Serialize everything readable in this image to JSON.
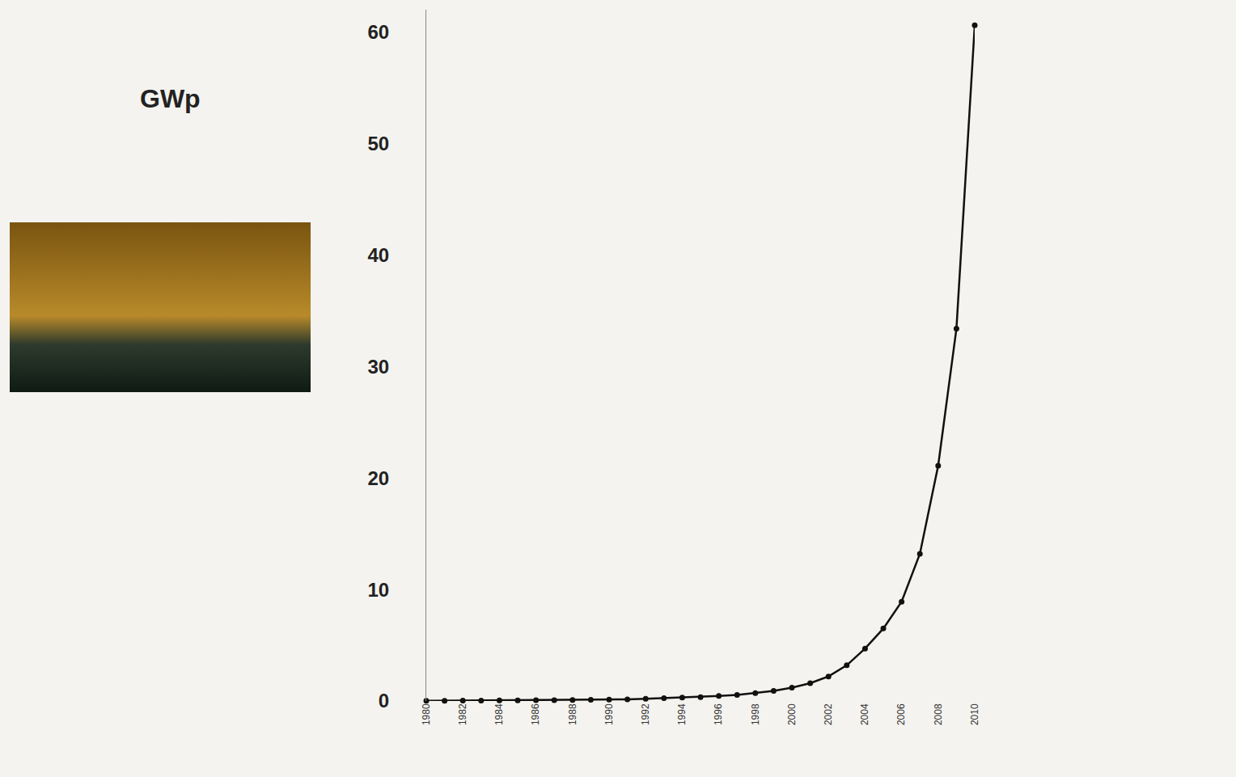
{
  "chart_data": {
    "type": "line",
    "y_label": "GWp",
    "x": [
      1980,
      1981,
      1982,
      1983,
      1984,
      1985,
      1986,
      1987,
      1988,
      1989,
      1990,
      1991,
      1992,
      1993,
      1994,
      1995,
      1996,
      1997,
      1998,
      1999,
      2000,
      2001,
      2002,
      2003,
      2004,
      2005,
      2006,
      2007,
      2008,
      2009,
      2010
    ],
    "values": [
      0.01,
      0.02,
      0.03,
      0.04,
      0.05,
      0.06,
      0.07,
      0.08,
      0.09,
      0.1,
      0.12,
      0.15,
      0.2,
      0.25,
      0.3,
      0.35,
      0.45,
      0.55,
      0.7,
      0.9,
      1.2,
      1.6,
      2.2,
      3.2,
      4.7,
      6.5,
      8.9,
      13.2,
      21.1,
      33.4,
      60.6
    ],
    "color": "#111111",
    "marker": "circle",
    "line_style": "solid",
    "xlim": [
      1980,
      2010
    ],
    "xticks": [
      1980,
      1982,
      1984,
      1986,
      1988,
      1990,
      1992,
      1994,
      1996,
      1998,
      2000,
      2002,
      2004,
      2006,
      2008,
      2010
    ],
    "ylim": [
      0,
      62
    ],
    "yticks": [
      0,
      10,
      20,
      30,
      40,
      50,
      60
    ],
    "grid": false
  }
}
